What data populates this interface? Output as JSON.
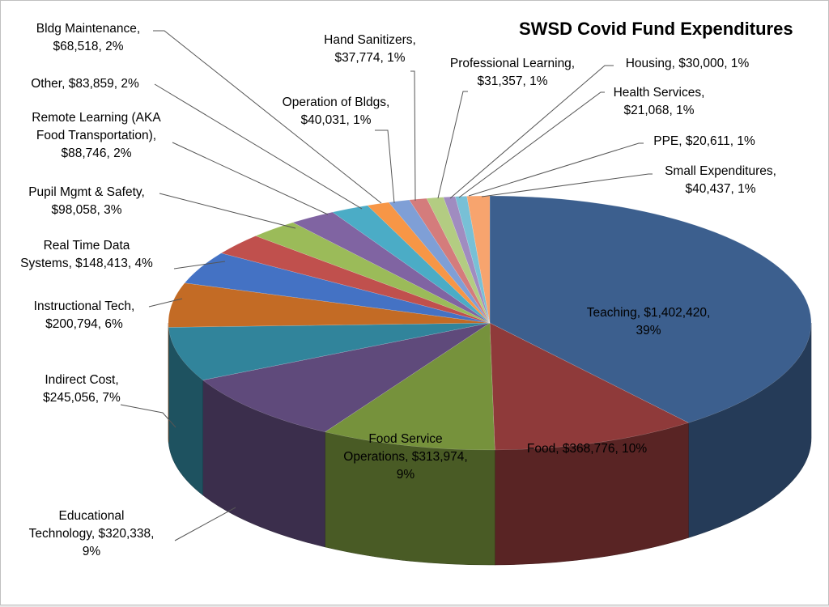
{
  "chart_data": {
    "type": "pie",
    "title": "SWSD Covid Fund Expenditures",
    "slices": [
      {
        "name": "Teaching",
        "value": 1402420,
        "value_label": "$1,402,420",
        "percent": "39%",
        "color": "#3c5f8e"
      },
      {
        "name": "Food",
        "value": 368776,
        "value_label": "$368,776",
        "percent": "10%",
        "color": "#8f3a3a"
      },
      {
        "name": "Food Service Operations",
        "value": 313974,
        "value_label": "$313,974",
        "percent": "9%",
        "color": "#76923c"
      },
      {
        "name": "Educational Technology",
        "value": 320338,
        "value_label": "$320,338",
        "percent": "9%",
        "color": "#5f4a7b"
      },
      {
        "name": "Indirect Cost",
        "value": 245056,
        "value_label": "$245,056",
        "percent": "7%",
        "color": "#31849b"
      },
      {
        "name": "Instructional Tech",
        "value": 200794,
        "value_label": "$200,794",
        "percent": "6%",
        "color": "#c36b25"
      },
      {
        "name": "Real Time Data Systems",
        "value": 148413,
        "value_label": "$148,413",
        "percent": "4%",
        "color": "#4472c4"
      },
      {
        "name": "Pupil Mgmt & Safety",
        "value": 98058,
        "value_label": "$98,058",
        "percent": "3%",
        "color": "#c0504d"
      },
      {
        "name": "Remote Learning (AKA Food Transportation)",
        "value": 88746,
        "value_label": "$88,746",
        "percent": "2%",
        "color": "#9bbb59"
      },
      {
        "name": "Other",
        "value": 83859,
        "value_label": "$83,859",
        "percent": "2%",
        "color": "#8064a2"
      },
      {
        "name": "Bldg Maintenance",
        "value": 68518,
        "value_label": "$68,518",
        "percent": "2%",
        "color": "#4bacc6"
      },
      {
        "name": "Operation of Bldgs",
        "value": 40031,
        "value_label": "$40,031",
        "percent": "1%",
        "color": "#f79646"
      },
      {
        "name": "Hand Sanitizers",
        "value": 37774,
        "value_label": "$37,774",
        "percent": "1%",
        "color": "#7f9fd6"
      },
      {
        "name": "Professional Learning",
        "value": 31357,
        "value_label": "$31,357",
        "percent": "1%",
        "color": "#d47c7c"
      },
      {
        "name": "Housing",
        "value": 30000,
        "value_label": "$30,000",
        "percent": "1%",
        "color": "#b3cc82"
      },
      {
        "name": "Health Services",
        "value": 21068,
        "value_label": "$21,068",
        "percent": "1%",
        "color": "#a08cc0"
      },
      {
        "name": "PPE",
        "value": 20611,
        "value_label": "$20,611",
        "percent": "1%",
        "color": "#78c0d6"
      },
      {
        "name": "Small Expenditures",
        "value": 40437,
        "value_label": "$40,437",
        "percent": "1%",
        "color": "#f7a46e"
      }
    ],
    "label_lines": [
      {
        "slice": "Teaching",
        "lines": [
          "Teaching, $1,402,420,",
          "39%"
        ]
      },
      {
        "slice": "Food",
        "lines": [
          "Food, $368,776, 10%"
        ]
      },
      {
        "slice": "Food Service Operations",
        "lines": [
          "Food Service",
          "Operations, $313,974,",
          "9%"
        ]
      },
      {
        "slice": "Educational Technology",
        "lines": [
          "Educational",
          "Technology, $320,338,",
          "9%"
        ]
      },
      {
        "slice": "Indirect Cost",
        "lines": [
          "Indirect Cost,",
          "$245,056, 7%"
        ]
      },
      {
        "slice": "Instructional Tech",
        "lines": [
          "Instructional Tech,",
          "$200,794, 6%"
        ]
      },
      {
        "slice": "Real Time Data Systems",
        "lines": [
          "Real Time Data",
          "Systems, $148,413, 4%"
        ]
      },
      {
        "slice": "Pupil Mgmt & Safety",
        "lines": [
          "Pupil Mgmt & Safety,",
          "$98,058, 3%"
        ]
      },
      {
        "slice": "Remote Learning (AKA Food Transportation)",
        "lines": [
          "Remote Learning (AKA",
          "Food Transportation),",
          "$88,746, 2%"
        ]
      },
      {
        "slice": "Other",
        "lines": [
          "Other, $83,859, 2%"
        ]
      },
      {
        "slice": "Bldg Maintenance",
        "lines": [
          "Bldg Maintenance,",
          "$68,518, 2%"
        ]
      },
      {
        "slice": "Operation of Bldgs",
        "lines": [
          "Operation of Bldgs,",
          "$40,031, 1%"
        ]
      },
      {
        "slice": "Hand Sanitizers",
        "lines": [
          "Hand Sanitizers,",
          "$37,774, 1%"
        ]
      },
      {
        "slice": "Professional Learning",
        "lines": [
          "Professional Learning,",
          "$31,357, 1%"
        ]
      },
      {
        "slice": "Housing",
        "lines": [
          "Housing, $30,000, 1%"
        ]
      },
      {
        "slice": "Health Services",
        "lines": [
          "Health Services,",
          "$21,068, 1%"
        ]
      },
      {
        "slice": "PPE",
        "lines": [
          "PPE, $20,611, 1%"
        ]
      },
      {
        "slice": "Small Expenditures",
        "lines": [
          "Small Expenditures,",
          "$40,437, 1%"
        ]
      }
    ]
  }
}
